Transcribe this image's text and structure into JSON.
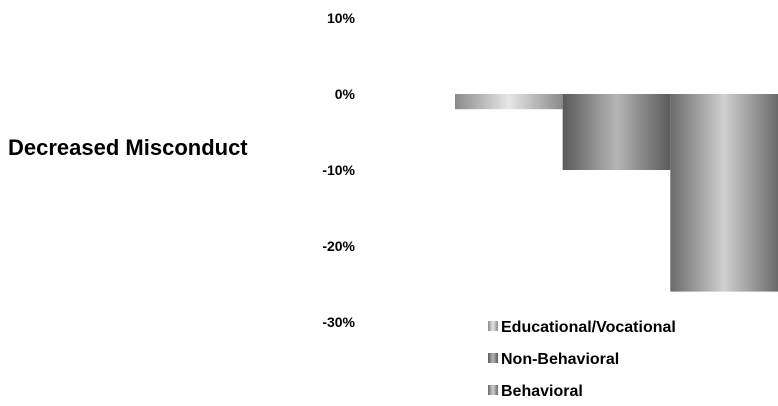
{
  "chart_data": {
    "type": "bar",
    "ylabel": "Decreased Misconduct",
    "ylim": [
      -30,
      10
    ],
    "y_ticks": [
      10,
      0,
      -10,
      -20,
      -30
    ],
    "y_tick_labels": [
      "10%",
      "0%",
      "-10%",
      "-20%",
      "-30%"
    ],
    "grid": false,
    "legend_position": "bottom-right",
    "series": [
      {
        "name": "Educational/Vocational",
        "values": [
          -2
        ],
        "color": "#b8b8b8"
      },
      {
        "name": "Non-Behavioral",
        "values": [
          -10
        ],
        "color": "#8c8c8c"
      },
      {
        "name": "Behavioral",
        "values": [
          -26
        ],
        "color": "#a6a6a6"
      }
    ]
  }
}
